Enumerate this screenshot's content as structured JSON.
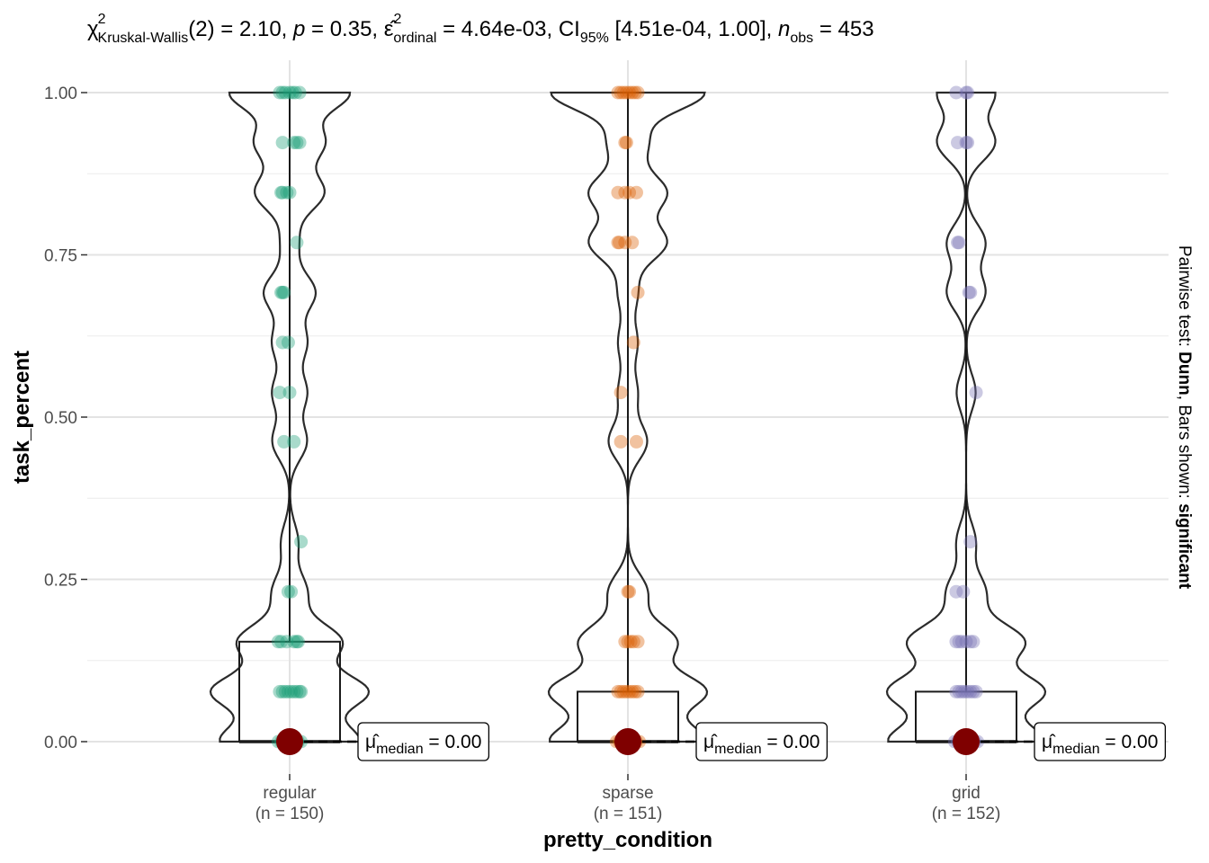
{
  "chart_data": {
    "type": "violin-box-scatter",
    "title": "",
    "subtitle_parts": {
      "chi": "χ",
      "chi_sup": "2",
      "test_sub": "Kruskal-Wallis",
      "df": "(2) = 2.10, ",
      "p_sym": "p",
      "p_val": " = 0.35, ",
      "eps": "ε̂",
      "eps_sup": "2",
      "eps_sub": "ordinal",
      "eps_val": " = 4.64e-03, CI",
      "ci_sub": "95%",
      "ci_val": " [4.51e-04, 1.00], ",
      "n_sym": "n",
      "n_sub": "obs",
      "n_val": " = 453"
    },
    "xlabel": "pretty_condition",
    "ylabel": "task_percent",
    "caption_parts": {
      "a": "Pairwise test: ",
      "b": "Dunn",
      "c": ", Bars shown: ",
      "d": "significant"
    },
    "ylim": [
      -0.04,
      1.04
    ],
    "yticks": [
      0.0,
      0.25,
      0.5,
      0.75,
      1.0
    ],
    "ytick_labels": [
      "0.00",
      "0.25",
      "0.50",
      "0.75",
      "1.00"
    ],
    "categories": [
      "regular",
      "sparse",
      "grid"
    ],
    "category_counts": [
      "(n = 150)",
      "(n = 151)",
      "(n = 152)"
    ],
    "colors": [
      "#1b9e77",
      "#d95f02",
      "#7570b3"
    ],
    "median_color": "#7f0000",
    "groups": [
      {
        "name": "regular",
        "box": {
          "q1": 0.0,
          "median": 0.0,
          "q3": 0.154,
          "lower_whisker": 0.0,
          "upper_whisker": 1.0
        },
        "median_label_prefix": "μ̂",
        "median_label_sub": "median",
        "median_label_value": " = 0.00",
        "points": [
          {
            "y": 1.0,
            "dx": -0.07
          },
          {
            "y": 1.0,
            "dx": -0.05
          },
          {
            "y": 1.0,
            "dx": -0.03
          },
          {
            "y": 1.0,
            "dx": 0.0
          },
          {
            "y": 1.0,
            "dx": 0.02
          },
          {
            "y": 1.0,
            "dx": 0.04
          },
          {
            "y": 1.0,
            "dx": 0.07
          },
          {
            "y": 0.923,
            "dx": -0.05
          },
          {
            "y": 0.923,
            "dx": 0.03
          },
          {
            "y": 0.923,
            "dx": 0.05
          },
          {
            "y": 0.923,
            "dx": 0.07
          },
          {
            "y": 0.846,
            "dx": -0.06
          },
          {
            "y": 0.846,
            "dx": -0.05
          },
          {
            "y": 0.846,
            "dx": -0.02
          },
          {
            "y": 0.846,
            "dx": 0.0
          },
          {
            "y": 0.769,
            "dx": 0.05
          },
          {
            "y": 0.692,
            "dx": -0.06
          },
          {
            "y": 0.692,
            "dx": -0.05
          },
          {
            "y": 0.692,
            "dx": -0.04
          },
          {
            "y": 0.615,
            "dx": -0.05
          },
          {
            "y": 0.615,
            "dx": -0.01
          },
          {
            "y": 0.538,
            "dx": -0.07
          },
          {
            "y": 0.538,
            "dx": 0.0
          },
          {
            "y": 0.462,
            "dx": -0.04
          },
          {
            "y": 0.462,
            "dx": 0.03
          },
          {
            "y": 0.308,
            "dx": 0.08
          },
          {
            "y": 0.231,
            "dx": -0.01
          },
          {
            "y": 0.231,
            "dx": 0.01
          },
          {
            "y": 0.154,
            "dx": -0.08
          },
          {
            "y": 0.154,
            "dx": -0.06
          },
          {
            "y": 0.154,
            "dx": -0.02
          },
          {
            "y": 0.154,
            "dx": 0.03
          },
          {
            "y": 0.154,
            "dx": 0.05
          },
          {
            "y": 0.154,
            "dx": 0.06
          },
          {
            "y": 0.077,
            "dx": -0.07
          },
          {
            "y": 0.077,
            "dx": -0.05
          },
          {
            "y": 0.077,
            "dx": -0.03
          },
          {
            "y": 0.077,
            "dx": -0.01
          },
          {
            "y": 0.077,
            "dx": 0.01
          },
          {
            "y": 0.077,
            "dx": 0.03
          },
          {
            "y": 0.077,
            "dx": 0.05
          },
          {
            "y": 0.077,
            "dx": 0.07
          },
          {
            "y": 0.077,
            "dx": 0.08
          },
          {
            "y": 0.0,
            "dx": -0.08
          },
          {
            "y": 0.0,
            "dx": -0.06
          },
          {
            "y": 0.0,
            "dx": -0.04
          },
          {
            "y": 0.0,
            "dx": -0.02
          },
          {
            "y": 0.0,
            "dx": 0.02
          },
          {
            "y": 0.0,
            "dx": 0.04
          },
          {
            "y": 0.0,
            "dx": 0.06
          },
          {
            "y": 0.0,
            "dx": 0.08
          }
        ]
      },
      {
        "name": "sparse",
        "box": {
          "q1": 0.0,
          "median": 0.0,
          "q3": 0.077,
          "lower_whisker": 0.0,
          "upper_whisker": 1.0
        },
        "median_label_prefix": "μ̂",
        "median_label_sub": "median",
        "median_label_value": " = 0.00",
        "points": [
          {
            "y": 1.0,
            "dx": -0.07
          },
          {
            "y": 1.0,
            "dx": -0.05
          },
          {
            "y": 1.0,
            "dx": -0.03
          },
          {
            "y": 1.0,
            "dx": -0.01
          },
          {
            "y": 1.0,
            "dx": 0.01
          },
          {
            "y": 1.0,
            "dx": 0.03
          },
          {
            "y": 1.0,
            "dx": 0.05
          },
          {
            "y": 1.0,
            "dx": 0.07
          },
          {
            "y": 0.923,
            "dx": -0.02
          },
          {
            "y": 0.923,
            "dx": -0.01
          },
          {
            "y": 0.846,
            "dx": -0.07
          },
          {
            "y": 0.846,
            "dx": -0.02
          },
          {
            "y": 0.846,
            "dx": 0.01
          },
          {
            "y": 0.846,
            "dx": 0.06
          },
          {
            "y": 0.769,
            "dx": -0.07
          },
          {
            "y": 0.769,
            "dx": -0.06
          },
          {
            "y": 0.769,
            "dx": -0.02
          },
          {
            "y": 0.769,
            "dx": 0.03
          },
          {
            "y": 0.692,
            "dx": 0.07
          },
          {
            "y": 0.615,
            "dx": 0.04
          },
          {
            "y": 0.538,
            "dx": -0.05
          },
          {
            "y": 0.462,
            "dx": -0.05
          },
          {
            "y": 0.462,
            "dx": 0.06
          },
          {
            "y": 0.231,
            "dx": 0.0
          },
          {
            "y": 0.231,
            "dx": 0.01
          },
          {
            "y": 0.154,
            "dx": -0.02
          },
          {
            "y": 0.154,
            "dx": 0.0
          },
          {
            "y": 0.154,
            "dx": 0.02
          },
          {
            "y": 0.154,
            "dx": 0.04
          },
          {
            "y": 0.154,
            "dx": 0.07
          },
          {
            "y": 0.077,
            "dx": -0.07
          },
          {
            "y": 0.077,
            "dx": -0.05
          },
          {
            "y": 0.077,
            "dx": -0.03
          },
          {
            "y": 0.077,
            "dx": -0.01
          },
          {
            "y": 0.077,
            "dx": 0.01
          },
          {
            "y": 0.077,
            "dx": 0.03
          },
          {
            "y": 0.077,
            "dx": 0.05
          },
          {
            "y": 0.077,
            "dx": 0.07
          },
          {
            "y": 0.0,
            "dx": -0.08
          },
          {
            "y": 0.0,
            "dx": -0.06
          },
          {
            "y": 0.0,
            "dx": -0.04
          },
          {
            "y": 0.0,
            "dx": -0.02
          },
          {
            "y": 0.0,
            "dx": 0.02
          },
          {
            "y": 0.0,
            "dx": 0.04
          },
          {
            "y": 0.0,
            "dx": 0.06
          },
          {
            "y": 0.0,
            "dx": 0.08
          }
        ]
      },
      {
        "name": "grid",
        "box": {
          "q1": 0.0,
          "median": 0.0,
          "q3": 0.077,
          "lower_whisker": 0.0,
          "upper_whisker": 1.0
        },
        "median_label_prefix": "μ̂",
        "median_label_sub": "median",
        "median_label_value": " = 0.00",
        "points": [
          {
            "y": 1.0,
            "dx": -0.07
          },
          {
            "y": 1.0,
            "dx": 0.0
          },
          {
            "y": 1.0,
            "dx": 0.01
          },
          {
            "y": 0.923,
            "dx": -0.06
          },
          {
            "y": 0.923,
            "dx": 0.0
          },
          {
            "y": 0.923,
            "dx": 0.01
          },
          {
            "y": 0.769,
            "dx": -0.06
          },
          {
            "y": 0.769,
            "dx": -0.05
          },
          {
            "y": 0.692,
            "dx": 0.02
          },
          {
            "y": 0.692,
            "dx": 0.03
          },
          {
            "y": 0.538,
            "dx": 0.07
          },
          {
            "y": 0.308,
            "dx": 0.03
          },
          {
            "y": 0.231,
            "dx": -0.07
          },
          {
            "y": 0.231,
            "dx": -0.02
          },
          {
            "y": 0.154,
            "dx": -0.07
          },
          {
            "y": 0.154,
            "dx": -0.05
          },
          {
            "y": 0.154,
            "dx": -0.03
          },
          {
            "y": 0.154,
            "dx": 0.0
          },
          {
            "y": 0.154,
            "dx": 0.03
          },
          {
            "y": 0.154,
            "dx": 0.05
          },
          {
            "y": 0.077,
            "dx": -0.07
          },
          {
            "y": 0.077,
            "dx": -0.05
          },
          {
            "y": 0.077,
            "dx": -0.03
          },
          {
            "y": 0.077,
            "dx": -0.01
          },
          {
            "y": 0.077,
            "dx": 0.01
          },
          {
            "y": 0.077,
            "dx": 0.03
          },
          {
            "y": 0.077,
            "dx": 0.05
          },
          {
            "y": 0.077,
            "dx": 0.07
          },
          {
            "y": 0.0,
            "dx": -0.08
          },
          {
            "y": 0.0,
            "dx": -0.06
          },
          {
            "y": 0.0,
            "dx": -0.04
          },
          {
            "y": 0.0,
            "dx": -0.02
          },
          {
            "y": 0.0,
            "dx": 0.02
          },
          {
            "y": 0.0,
            "dx": 0.04
          },
          {
            "y": 0.0,
            "dx": 0.06
          },
          {
            "y": 0.0,
            "dx": 0.08
          }
        ]
      }
    ]
  }
}
